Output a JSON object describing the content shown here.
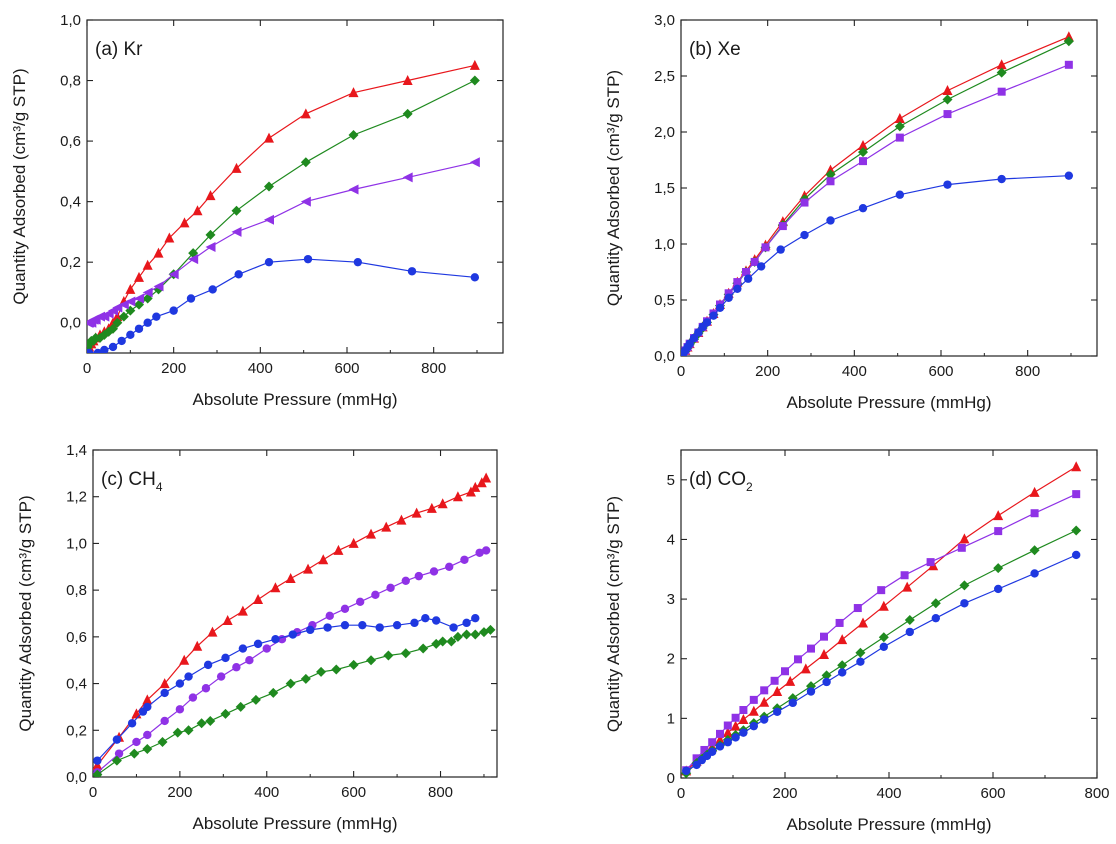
{
  "colors": {
    "red": "#e8171c",
    "green": "#1f8a1f",
    "purple": "#8f32e6",
    "blue": "#1f38e0"
  },
  "chart_data": [
    {
      "type": "line",
      "panel_label": "(a) Kr",
      "label_main": "(a) Kr",
      "label_sub": "",
      "label_tail": "",
      "xlabel": "Absolute Pressure (mmHg)",
      "ylabel": "Quantity Adsorbed (cm³/g STP)",
      "xlim": [
        0,
        960
      ],
      "ylim": [
        -0.1,
        1.0
      ],
      "xticks": [
        0,
        200,
        400,
        600,
        800
      ],
      "yticks": [
        0.0,
        0.2,
        0.4,
        0.6,
        0.8,
        1.0
      ],
      "xtick_labels": [
        "0",
        "200",
        "400",
        "600",
        "800"
      ],
      "ytick_labels": [
        "0,0",
        "0,2",
        "0,4",
        "0,6",
        "0,8",
        "1,0"
      ],
      "series": [
        {
          "color": "red",
          "marker": "triangle-up",
          "x": [
            2,
            5,
            10,
            15,
            20,
            30,
            40,
            50,
            60,
            70,
            85,
            100,
            120,
            140,
            165,
            190,
            225,
            255,
            285,
            345,
            420,
            505,
            615,
            740,
            895
          ],
          "y": [
            -0.1,
            -0.08,
            -0.07,
            -0.06,
            -0.05,
            -0.04,
            -0.03,
            -0.02,
            0.0,
            0.02,
            0.07,
            0.11,
            0.15,
            0.19,
            0.23,
            0.28,
            0.33,
            0.37,
            0.42,
            0.51,
            0.61,
            0.69,
            0.76,
            0.8,
            0.85
          ]
        },
        {
          "color": "green",
          "marker": "diamond",
          "x": [
            2,
            5,
            10,
            15,
            20,
            30,
            40,
            50,
            60,
            70,
            85,
            100,
            120,
            140,
            165,
            200,
            245,
            285,
            345,
            420,
            505,
            615,
            740,
            895
          ],
          "y": [
            -0.08,
            -0.07,
            -0.06,
            -0.06,
            -0.05,
            -0.05,
            -0.04,
            -0.03,
            -0.02,
            0.0,
            0.02,
            0.04,
            0.06,
            0.08,
            0.11,
            0.16,
            0.23,
            0.29,
            0.37,
            0.45,
            0.53,
            0.62,
            0.69,
            0.8
          ]
        },
        {
          "color": "purple",
          "marker": "triangle-left",
          "x": [
            2,
            5,
            10,
            15,
            20,
            30,
            40,
            50,
            60,
            70,
            85,
            100,
            120,
            140,
            165,
            200,
            245,
            285,
            345,
            420,
            505,
            615,
            740,
            895
          ],
          "y": [
            0.0,
            0.0,
            0.0,
            0.01,
            0.01,
            0.02,
            0.02,
            0.03,
            0.04,
            0.05,
            0.06,
            0.07,
            0.08,
            0.1,
            0.12,
            0.16,
            0.21,
            0.25,
            0.3,
            0.34,
            0.4,
            0.44,
            0.48,
            0.53
          ]
        },
        {
          "color": "blue",
          "marker": "circle",
          "x": [
            5,
            25,
            40,
            60,
            80,
            100,
            120,
            140,
            160,
            200,
            240,
            290,
            350,
            420,
            510,
            625,
            750,
            895
          ],
          "y": [
            -0.1,
            -0.1,
            -0.09,
            -0.08,
            -0.06,
            -0.04,
            -0.02,
            0.0,
            0.02,
            0.04,
            0.08,
            0.11,
            0.16,
            0.2,
            0.21,
            0.2,
            0.17,
            0.15
          ]
        }
      ]
    },
    {
      "type": "line",
      "panel_label": "(b) Xe",
      "label_main": "(b) Xe",
      "label_sub": "",
      "label_tail": "",
      "xlabel": "Absolute Pressure (mmHg)",
      "ylabel": "Quantity Adsorbed (cm³/g STP)",
      "xlim": [
        0,
        960
      ],
      "ylim": [
        0.0,
        3.0
      ],
      "xticks": [
        0,
        200,
        400,
        600,
        800
      ],
      "yticks": [
        0.0,
        0.5,
        1.0,
        1.5,
        2.0,
        2.5,
        3.0
      ],
      "xtick_labels": [
        "0",
        "200",
        "400",
        "600",
        "800"
      ],
      "ytick_labels": [
        "0,0",
        "0,5",
        "1,0",
        "1,5",
        "2,0",
        "2,5",
        "3,0"
      ],
      "series": [
        {
          "color": "red",
          "marker": "triangle-up",
          "x": [
            5,
            10,
            15,
            20,
            30,
            40,
            50,
            60,
            75,
            90,
            110,
            130,
            150,
            170,
            195,
            235,
            285,
            345,
            420,
            505,
            615,
            740,
            895
          ],
          "y": [
            0.02,
            0.05,
            0.08,
            0.11,
            0.16,
            0.21,
            0.26,
            0.31,
            0.38,
            0.46,
            0.56,
            0.66,
            0.76,
            0.86,
            0.99,
            1.2,
            1.43,
            1.66,
            1.88,
            2.12,
            2.37,
            2.6,
            2.85
          ]
        },
        {
          "color": "green",
          "marker": "diamond",
          "x": [
            5,
            10,
            15,
            20,
            30,
            40,
            50,
            60,
            75,
            90,
            110,
            130,
            150,
            170,
            195,
            235,
            285,
            345,
            420,
            505,
            615,
            740,
            895
          ],
          "y": [
            0.02,
            0.04,
            0.07,
            0.1,
            0.15,
            0.2,
            0.25,
            0.3,
            0.37,
            0.45,
            0.55,
            0.65,
            0.75,
            0.84,
            0.97,
            1.17,
            1.4,
            1.62,
            1.82,
            2.05,
            2.29,
            2.53,
            2.81
          ]
        },
        {
          "color": "purple",
          "marker": "square",
          "x": [
            5,
            10,
            15,
            20,
            30,
            40,
            50,
            60,
            75,
            90,
            110,
            130,
            150,
            170,
            195,
            235,
            285,
            345,
            420,
            505,
            615,
            740,
            895
          ],
          "y": [
            0.02,
            0.05,
            0.08,
            0.11,
            0.16,
            0.21,
            0.26,
            0.31,
            0.38,
            0.46,
            0.56,
            0.66,
            0.75,
            0.84,
            0.97,
            1.16,
            1.37,
            1.56,
            1.74,
            1.95,
            2.16,
            2.36,
            2.6
          ]
        },
        {
          "color": "blue",
          "marker": "circle",
          "x": [
            5,
            10,
            15,
            20,
            30,
            40,
            50,
            60,
            75,
            90,
            110,
            130,
            155,
            185,
            230,
            285,
            345,
            420,
            505,
            615,
            740,
            895
          ],
          "y": [
            0.02,
            0.05,
            0.08,
            0.11,
            0.16,
            0.21,
            0.26,
            0.3,
            0.36,
            0.43,
            0.52,
            0.6,
            0.69,
            0.8,
            0.95,
            1.08,
            1.21,
            1.32,
            1.44,
            1.53,
            1.58,
            1.61
          ]
        }
      ]
    },
    {
      "type": "line",
      "panel_label": "(c) CH4",
      "label_main": "(c) CH",
      "label_sub": "4",
      "label_tail": "",
      "xlabel": "Absolute Pressure (mmHg)",
      "ylabel": "Quantity Adsorbed (cm³/g STP)",
      "xlim": [
        0,
        930
      ],
      "ylim": [
        0.0,
        1.4
      ],
      "xticks": [
        0,
        200,
        400,
        600,
        800
      ],
      "yticks": [
        0.0,
        0.2,
        0.4,
        0.6,
        0.8,
        1.0,
        1.2,
        1.4
      ],
      "xtick_labels": [
        "0",
        "200",
        "400",
        "600",
        "800"
      ],
      "ytick_labels": [
        "0,0",
        "0,2",
        "0,4",
        "0,6",
        "0,8",
        "1,0",
        "1,2",
        "1,4"
      ],
      "series": [
        {
          "color": "red",
          "marker": "triangle-up",
          "x": [
            10,
            60,
            100,
            125,
            165,
            210,
            240,
            275,
            310,
            345,
            380,
            420,
            455,
            495,
            530,
            565,
            600,
            640,
            675,
            710,
            745,
            780,
            805,
            840,
            870,
            880,
            895,
            905
          ],
          "y": [
            0.05,
            0.17,
            0.27,
            0.33,
            0.4,
            0.5,
            0.56,
            0.62,
            0.67,
            0.71,
            0.76,
            0.81,
            0.85,
            0.89,
            0.93,
            0.97,
            1.0,
            1.04,
            1.07,
            1.1,
            1.13,
            1.15,
            1.17,
            1.2,
            1.22,
            1.24,
            1.26,
            1.28
          ]
        },
        {
          "color": "purple",
          "marker": "circle",
          "x": [
            10,
            60,
            100,
            125,
            165,
            200,
            230,
            260,
            295,
            330,
            360,
            400,
            435,
            470,
            505,
            545,
            580,
            615,
            650,
            685,
            720,
            750,
            785,
            820,
            855,
            890,
            905
          ],
          "y": [
            0.02,
            0.1,
            0.15,
            0.18,
            0.24,
            0.29,
            0.34,
            0.38,
            0.43,
            0.47,
            0.5,
            0.55,
            0.59,
            0.62,
            0.65,
            0.69,
            0.72,
            0.75,
            0.78,
            0.81,
            0.84,
            0.86,
            0.88,
            0.9,
            0.93,
            0.96,
            0.97
          ]
        },
        {
          "color": "blue",
          "marker": "circle",
          "x": [
            10,
            55,
            90,
            115,
            125,
            165,
            200,
            220,
            265,
            305,
            345,
            380,
            420,
            460,
            500,
            540,
            580,
            620,
            660,
            700,
            740,
            765,
            790,
            830,
            860,
            880
          ],
          "y": [
            0.07,
            0.16,
            0.23,
            0.28,
            0.3,
            0.36,
            0.4,
            0.43,
            0.48,
            0.51,
            0.55,
            0.57,
            0.59,
            0.61,
            0.63,
            0.64,
            0.65,
            0.65,
            0.64,
            0.65,
            0.66,
            0.68,
            0.67,
            0.64,
            0.66,
            0.68
          ]
        },
        {
          "color": "green",
          "marker": "diamond",
          "x": [
            10,
            55,
            95,
            125,
            160,
            195,
            220,
            250,
            270,
            305,
            340,
            375,
            415,
            455,
            490,
            525,
            560,
            600,
            640,
            680,
            720,
            760,
            790,
            805,
            825,
            840,
            860,
            880,
            900,
            915
          ],
          "y": [
            0.01,
            0.07,
            0.1,
            0.12,
            0.15,
            0.19,
            0.2,
            0.23,
            0.24,
            0.27,
            0.3,
            0.33,
            0.36,
            0.4,
            0.42,
            0.45,
            0.46,
            0.48,
            0.5,
            0.52,
            0.53,
            0.55,
            0.57,
            0.58,
            0.58,
            0.6,
            0.61,
            0.61,
            0.62,
            0.63
          ]
        }
      ]
    },
    {
      "type": "line",
      "panel_label": "(d) CO2",
      "label_main": "(d) CO",
      "label_sub": "2",
      "label_tail": "",
      "xlabel": "Absolute Pressure (mmHg)",
      "ylabel": "Quantity Adsorbed (cm³/g STP)",
      "xlim": [
        0,
        800
      ],
      "ylim": [
        0,
        5.5
      ],
      "xticks": [
        0,
        200,
        400,
        600,
        800
      ],
      "yticks": [
        0,
        1,
        2,
        3,
        4,
        5
      ],
      "xtick_labels": [
        "0",
        "200",
        "400",
        "600",
        "800"
      ],
      "ytick_labels": [
        "0",
        "1",
        "2",
        "3",
        "4",
        "5"
      ],
      "series": [
        {
          "color": "red",
          "marker": "triangle-up",
          "x": [
            10,
            30,
            45,
            60,
            75,
            90,
            105,
            120,
            140,
            160,
            185,
            210,
            240,
            275,
            310,
            350,
            390,
            435,
            485,
            545,
            610,
            680,
            760
          ],
          "y": [
            0.12,
            0.28,
            0.4,
            0.52,
            0.64,
            0.76,
            0.87,
            0.98,
            1.12,
            1.27,
            1.45,
            1.62,
            1.83,
            2.07,
            2.32,
            2.6,
            2.88,
            3.2,
            3.56,
            4.01,
            4.4,
            4.79,
            5.22
          ]
        },
        {
          "color": "purple",
          "marker": "square",
          "x": [
            10,
            30,
            45,
            60,
            75,
            90,
            105,
            120,
            140,
            160,
            180,
            200,
            225,
            250,
            275,
            305,
            340,
            385,
            430,
            480,
            540,
            610,
            680,
            760
          ],
          "y": [
            0.13,
            0.33,
            0.47,
            0.6,
            0.74,
            0.88,
            1.01,
            1.14,
            1.31,
            1.47,
            1.63,
            1.79,
            1.99,
            2.17,
            2.37,
            2.6,
            2.85,
            3.15,
            3.4,
            3.62,
            3.86,
            4.14,
            4.44,
            4.76
          ]
        },
        {
          "color": "green",
          "marker": "diamond",
          "x": [
            10,
            30,
            40,
            50,
            60,
            75,
            90,
            105,
            120,
            140,
            160,
            185,
            215,
            250,
            280,
            310,
            345,
            390,
            440,
            490,
            545,
            610,
            680,
            760
          ],
          "y": [
            0.08,
            0.25,
            0.32,
            0.39,
            0.46,
            0.55,
            0.64,
            0.72,
            0.8,
            0.92,
            1.03,
            1.17,
            1.34,
            1.54,
            1.72,
            1.89,
            2.1,
            2.36,
            2.65,
            2.93,
            3.23,
            3.52,
            3.82,
            4.15
          ]
        },
        {
          "color": "blue",
          "marker": "circle",
          "x": [
            10,
            30,
            40,
            50,
            60,
            75,
            90,
            105,
            120,
            140,
            160,
            185,
            215,
            250,
            280,
            310,
            345,
            390,
            440,
            490,
            545,
            610,
            680,
            760
          ],
          "y": [
            0.12,
            0.22,
            0.3,
            0.37,
            0.44,
            0.53,
            0.6,
            0.68,
            0.76,
            0.87,
            0.98,
            1.11,
            1.26,
            1.45,
            1.61,
            1.77,
            1.95,
            2.2,
            2.45,
            2.68,
            2.93,
            3.17,
            3.43,
            3.74
          ]
        }
      ]
    }
  ]
}
